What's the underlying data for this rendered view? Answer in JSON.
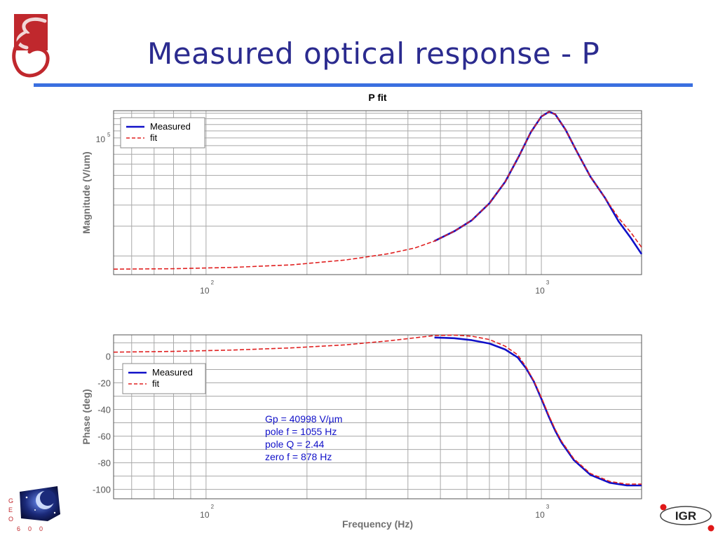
{
  "slide": {
    "title": "Measured optical response - P"
  },
  "branding": {
    "top_logo_icon": "geo600-swirl-logo-icon",
    "bottom_left_logo_icon": "geo600-space-logo-icon",
    "bottom_left_logo_letters": [
      "G",
      "E",
      "O",
      "6",
      "0",
      "0"
    ],
    "bottom_right_logo_text": "IGR",
    "accent_color": "#3a6fe0",
    "title_color": "#2b2b8f",
    "logo_red": "#c0282d"
  },
  "chart_data": [
    {
      "type": "line",
      "title": "P fit",
      "xlabel": "",
      "ylabel": "Magnitude (V/um)",
      "xscale": "log",
      "yscale": "log",
      "xlim": [
        53,
        1990
      ],
      "x_ticks": [
        {
          "base": "10",
          "exp": "2",
          "value": 100
        },
        {
          "base": "10",
          "exp": "3",
          "value": 1000
        }
      ],
      "y_ticks": [
        {
          "base": "10",
          "exp": "5",
          "value": 100000
        }
      ],
      "grid": true,
      "legend_position": "top-left",
      "series": [
        {
          "name": "Measured",
          "color": "#1010c8",
          "style": "solid",
          "x": [
            480,
            550,
            620,
            700,
            780,
            860,
            930,
            1000,
            1055,
            1100,
            1180,
            1280,
            1400,
            1550,
            1700,
            1850,
            1990
          ],
          "y": [
            24500,
            28000,
            32500,
            41000,
            55000,
            79000,
            108000,
            134000,
            143000,
            138000,
            112000,
            82000,
            59000,
            44000,
            32000,
            25500,
            20500
          ]
        },
        {
          "name": "fit",
          "color": "#e02020",
          "style": "dashed",
          "x": [
            53,
            80,
            120,
            180,
            260,
            350,
            420,
            480,
            550,
            620,
            700,
            780,
            860,
            930,
            1000,
            1055,
            1100,
            1180,
            1280,
            1400,
            1550,
            1700,
            1850,
            1990
          ],
          "y": [
            16700,
            16800,
            17100,
            17700,
            18900,
            20600,
            22300,
            24500,
            28000,
            32500,
            41000,
            55000,
            79000,
            108000,
            134000,
            143000,
            138000,
            112000,
            82000,
            59000,
            44000,
            33500,
            27500,
            22500
          ]
        }
      ]
    },
    {
      "type": "line",
      "title": "",
      "xlabel": "Frequency (Hz)",
      "ylabel": "Phase (deg)",
      "xscale": "log",
      "yscale": "linear",
      "xlim": [
        53,
        1990
      ],
      "ylim": [
        -107,
        16
      ],
      "x_ticks": [
        {
          "base": "10",
          "exp": "2",
          "value": 100
        },
        {
          "base": "10",
          "exp": "3",
          "value": 1000
        }
      ],
      "y_ticks": [
        0,
        -20,
        -40,
        -60,
        -80,
        -100
      ],
      "grid": true,
      "legend_position": "upper-left",
      "annotation": [
        "Gp = 40998 V/µm",
        "pole f = 1055 Hz",
        "pole Q = 2.44",
        "zero f = 878 Hz"
      ],
      "annotation_color": "#1010c8",
      "series": [
        {
          "name": "Measured",
          "color": "#1010c8",
          "style": "solid",
          "x": [
            480,
            550,
            620,
            700,
            780,
            850,
            900,
            950,
            1000,
            1055,
            1100,
            1150,
            1250,
            1400,
            1600,
            1800,
            1990
          ],
          "y": [
            14,
            13.5,
            12,
            9.5,
            5,
            -1,
            -9,
            -19,
            -32,
            -46,
            -56,
            -65,
            -78,
            -89,
            -95,
            -97,
            -97
          ]
        },
        {
          "name": "fit",
          "color": "#e02020",
          "style": "dashed",
          "x": [
            53,
            80,
            120,
            180,
            260,
            350,
            420,
            480,
            550,
            620,
            700,
            780,
            850,
            900,
            950,
            1000,
            1055,
            1100,
            1150,
            1250,
            1400,
            1600,
            1800,
            1990
          ],
          "y": [
            3,
            3.6,
            4.6,
            6.2,
            8.5,
            11.5,
            13.8,
            15.5,
            15.8,
            15,
            12.5,
            7.5,
            1,
            -8,
            -18.5,
            -31,
            -45,
            -55,
            -64,
            -77,
            -88,
            -94,
            -96,
            -96
          ]
        }
      ]
    }
  ]
}
